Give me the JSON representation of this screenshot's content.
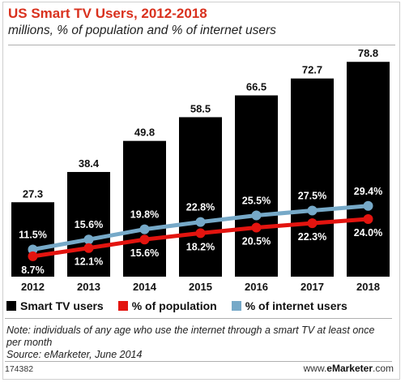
{
  "chart_data": {
    "type": "bar",
    "title": "US Smart TV Users, 2012-2018",
    "subtitle": "millions, % of population and % of internet users",
    "categories": [
      "2012",
      "2013",
      "2014",
      "2015",
      "2016",
      "2017",
      "2018"
    ],
    "series": [
      {
        "name": "Smart TV users",
        "type": "bar",
        "color": "#000000",
        "values": [
          27.3,
          38.4,
          49.8,
          58.5,
          66.5,
          72.7,
          78.8
        ],
        "labels": [
          "27.3",
          "38.4",
          "49.8",
          "58.5",
          "66.5",
          "72.7",
          "78.8"
        ]
      },
      {
        "name": "% of population",
        "type": "line",
        "color": "#e3140f",
        "values": [
          8.7,
          12.1,
          15.6,
          18.2,
          20.5,
          22.3,
          24.0
        ],
        "labels": [
          "8.7%",
          "12.1%",
          "15.6%",
          "18.2%",
          "20.5%",
          "22.3%",
          "24.0%"
        ]
      },
      {
        "name": "% of internet users",
        "type": "line",
        "color": "#76a9c8",
        "values": [
          11.5,
          15.6,
          19.8,
          22.8,
          25.5,
          27.5,
          29.4
        ],
        "labels": [
          "11.5%",
          "15.6%",
          "19.8%",
          "22.8%",
          "25.5%",
          "27.5%",
          "29.4%"
        ]
      }
    ],
    "legend": "bottom",
    "grid": false
  },
  "footer": {
    "note": "Note: individuals of any age who use the internet through a smart TV at least once per month",
    "source": "Source: eMarketer, June 2014",
    "chart_id": "174382",
    "brand_prefix": "www.",
    "brand_name": "eMarketer",
    "brand_suffix": ".com"
  }
}
